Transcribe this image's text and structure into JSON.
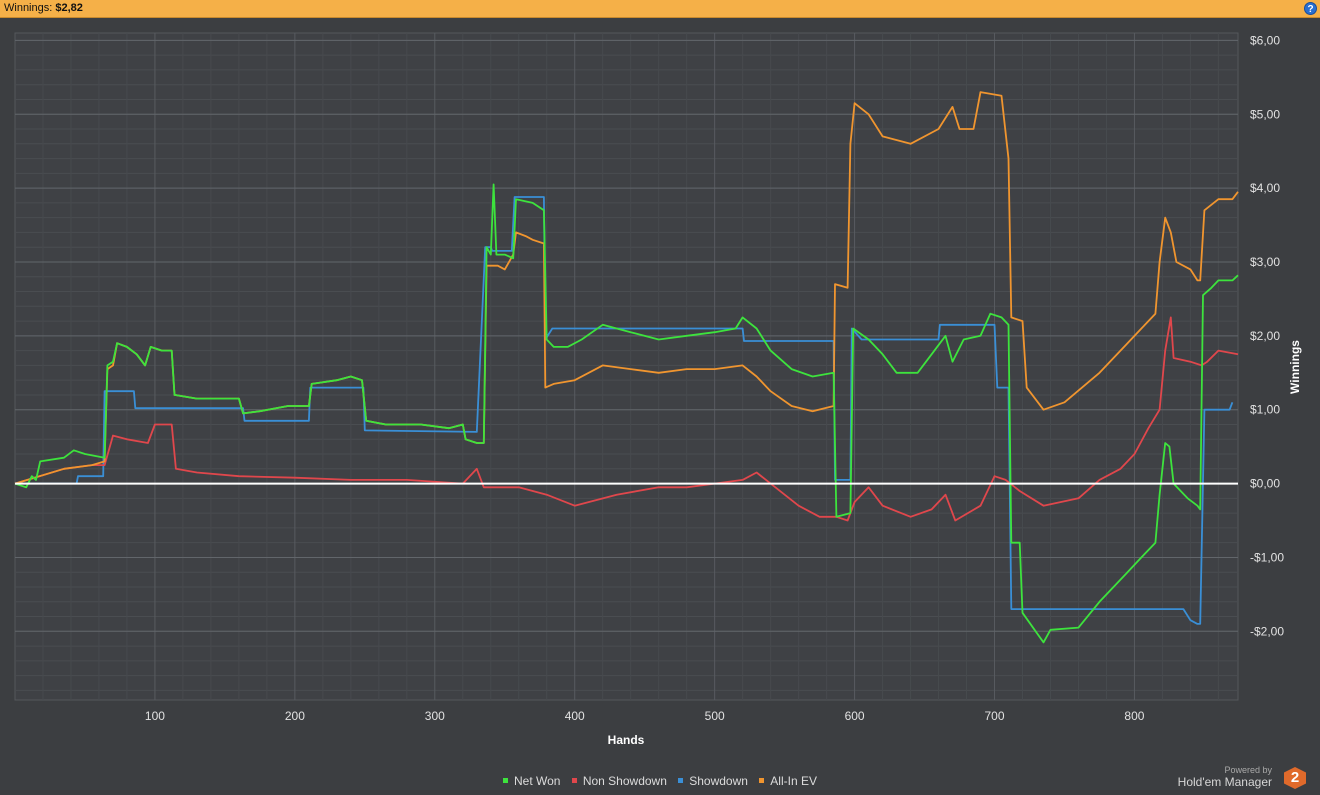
{
  "header": {
    "label": "Winnings:",
    "value": "$2,82",
    "help_icon": "?"
  },
  "brand": {
    "powered_by": "Powered by",
    "name": "Hold'em Manager",
    "logo_text": "2"
  },
  "colors": {
    "net_won": "#3de33d",
    "non_showdown": "#e0474c",
    "showdown": "#3a8fd6",
    "allin_ev": "#f0952f",
    "zero_line": "#ffffff"
  },
  "chart_data": {
    "type": "line",
    "xlabel": "Hands",
    "ylabel": "Winnings",
    "xlim": [
      0,
      874
    ],
    "ylim": [
      -2.93,
      6.1
    ],
    "x_ticks": [
      100,
      200,
      300,
      400,
      500,
      600,
      700,
      800
    ],
    "y_ticks": [
      {
        "v": 6,
        "label": "$6,00"
      },
      {
        "v": 5,
        "label": "$5,00"
      },
      {
        "v": 4,
        "label": "$4,00"
      },
      {
        "v": 3,
        "label": "$3,00"
      },
      {
        "v": 2,
        "label": "$2,00"
      },
      {
        "v": 1,
        "label": "$1,00"
      },
      {
        "v": 0,
        "label": "$0,00"
      },
      {
        "v": -1,
        "label": "-$1,00"
      },
      {
        "v": -2,
        "label": "-$2,00"
      }
    ],
    "grid": true,
    "legend_position": "bottom",
    "series": [
      {
        "name": "Net Won",
        "color": "#3de33d",
        "points": [
          [
            0,
            0
          ],
          [
            8,
            -0.05
          ],
          [
            12,
            0.1
          ],
          [
            15,
            0.05
          ],
          [
            18,
            0.3
          ],
          [
            35,
            0.35
          ],
          [
            42,
            0.45
          ],
          [
            50,
            0.4
          ],
          [
            64,
            0.35
          ],
          [
            66,
            1.6
          ],
          [
            70,
            1.65
          ],
          [
            73,
            1.9
          ],
          [
            80,
            1.85
          ],
          [
            87,
            1.75
          ],
          [
            93,
            1.6
          ],
          [
            97,
            1.85
          ],
          [
            105,
            1.8
          ],
          [
            112,
            1.8
          ],
          [
            114,
            1.2
          ],
          [
            130,
            1.15
          ],
          [
            160,
            1.15
          ],
          [
            163,
            0.95
          ],
          [
            175,
            0.98
          ],
          [
            195,
            1.05
          ],
          [
            210,
            1.05
          ],
          [
            212,
            1.35
          ],
          [
            230,
            1.4
          ],
          [
            240,
            1.45
          ],
          [
            248,
            1.4
          ],
          [
            251,
            0.85
          ],
          [
            265,
            0.8
          ],
          [
            290,
            0.8
          ],
          [
            310,
            0.75
          ],
          [
            320,
            0.8
          ],
          [
            322,
            0.6
          ],
          [
            330,
            0.55
          ],
          [
            335,
            0.55
          ],
          [
            337,
            3.2
          ],
          [
            340,
            3.1
          ],
          [
            342,
            4.05
          ],
          [
            344,
            3.1
          ],
          [
            350,
            3.1
          ],
          [
            356,
            3.05
          ],
          [
            358,
            3.85
          ],
          [
            370,
            3.8
          ],
          [
            378,
            3.7
          ],
          [
            380,
            1.95
          ],
          [
            385,
            1.85
          ],
          [
            395,
            1.85
          ],
          [
            405,
            1.95
          ],
          [
            420,
            2.15
          ],
          [
            440,
            2.05
          ],
          [
            460,
            1.95
          ],
          [
            480,
            2.0
          ],
          [
            500,
            2.05
          ],
          [
            515,
            2.1
          ],
          [
            520,
            2.25
          ],
          [
            530,
            2.1
          ],
          [
            540,
            1.8
          ],
          [
            555,
            1.55
          ],
          [
            570,
            1.45
          ],
          [
            585,
            1.5
          ],
          [
            587,
            -0.45
          ],
          [
            597,
            -0.4
          ],
          [
            599,
            2.1
          ],
          [
            610,
            1.95
          ],
          [
            620,
            1.75
          ],
          [
            630,
            1.5
          ],
          [
            645,
            1.5
          ],
          [
            655,
            1.75
          ],
          [
            665,
            2.0
          ],
          [
            670,
            1.65
          ],
          [
            678,
            1.95
          ],
          [
            690,
            2.0
          ],
          [
            697,
            2.3
          ],
          [
            705,
            2.25
          ],
          [
            710,
            2.15
          ],
          [
            712,
            -0.8
          ],
          [
            718,
            -0.8
          ],
          [
            720,
            -1.75
          ],
          [
            735,
            -2.15
          ],
          [
            740,
            -1.98
          ],
          [
            760,
            -1.95
          ],
          [
            775,
            -1.6
          ],
          [
            785,
            -1.4
          ],
          [
            795,
            -1.2
          ],
          [
            805,
            -1.0
          ],
          [
            815,
            -0.8
          ],
          [
            818,
            -0.15
          ],
          [
            822,
            0.55
          ],
          [
            825,
            0.5
          ],
          [
            828,
            0.0
          ],
          [
            838,
            -0.2
          ],
          [
            845,
            -0.3
          ],
          [
            847,
            -0.35
          ],
          [
            849,
            2.55
          ],
          [
            855,
            2.65
          ],
          [
            860,
            2.75
          ],
          [
            870,
            2.75
          ],
          [
            874,
            2.82
          ]
        ]
      },
      {
        "name": "Non Showdown",
        "color": "#e0474c",
        "points": [
          [
            0,
            0
          ],
          [
            35,
            0.2
          ],
          [
            55,
            0.25
          ],
          [
            64,
            0.25
          ],
          [
            70,
            0.65
          ],
          [
            80,
            0.6
          ],
          [
            95,
            0.55
          ],
          [
            100,
            0.8
          ],
          [
            112,
            0.8
          ],
          [
            115,
            0.2
          ],
          [
            130,
            0.15
          ],
          [
            160,
            0.1
          ],
          [
            200,
            0.08
          ],
          [
            240,
            0.05
          ],
          [
            280,
            0.05
          ],
          [
            320,
            0.0
          ],
          [
            330,
            0.2
          ],
          [
            335,
            -0.05
          ],
          [
            360,
            -0.05
          ],
          [
            380,
            -0.15
          ],
          [
            400,
            -0.3
          ],
          [
            430,
            -0.15
          ],
          [
            460,
            -0.05
          ],
          [
            480,
            -0.05
          ],
          [
            500,
            0.0
          ],
          [
            520,
            0.05
          ],
          [
            530,
            0.15
          ],
          [
            540,
            0.0
          ],
          [
            560,
            -0.3
          ],
          [
            575,
            -0.45
          ],
          [
            587,
            -0.45
          ],
          [
            595,
            -0.5
          ],
          [
            600,
            -0.25
          ],
          [
            610,
            -0.05
          ],
          [
            620,
            -0.3
          ],
          [
            640,
            -0.45
          ],
          [
            655,
            -0.35
          ],
          [
            665,
            -0.15
          ],
          [
            672,
            -0.5
          ],
          [
            690,
            -0.3
          ],
          [
            700,
            0.1
          ],
          [
            708,
            0.05
          ],
          [
            718,
            -0.1
          ],
          [
            735,
            -0.3
          ],
          [
            760,
            -0.2
          ],
          [
            775,
            0.05
          ],
          [
            790,
            0.2
          ],
          [
            800,
            0.4
          ],
          [
            810,
            0.75
          ],
          [
            818,
            1.0
          ],
          [
            822,
            1.8
          ],
          [
            826,
            2.25
          ],
          [
            828,
            1.7
          ],
          [
            840,
            1.65
          ],
          [
            848,
            1.6
          ],
          [
            852,
            1.65
          ],
          [
            860,
            1.8
          ],
          [
            874,
            1.75
          ]
        ]
      },
      {
        "name": "Showdown",
        "color": "#3a8fd6",
        "points": [
          [
            0,
            0
          ],
          [
            44,
            0
          ],
          [
            45,
            0.1
          ],
          [
            63,
            0.1
          ],
          [
            64,
            1.25
          ],
          [
            85,
            1.25
          ],
          [
            86,
            1.02
          ],
          [
            163,
            1.02
          ],
          [
            164,
            0.85
          ],
          [
            210,
            0.85
          ],
          [
            211,
            1.3
          ],
          [
            249,
            1.3
          ],
          [
            250,
            0.72
          ],
          [
            330,
            0.7
          ],
          [
            336,
            3.2
          ],
          [
            340,
            3.2
          ],
          [
            341,
            3.15
          ],
          [
            355,
            3.15
          ],
          [
            357,
            3.88
          ],
          [
            378,
            3.88
          ],
          [
            379,
            1.95
          ],
          [
            384,
            2.1
          ],
          [
            520,
            2.1
          ],
          [
            521,
            1.93
          ],
          [
            585,
            1.93
          ],
          [
            586,
            0.05
          ],
          [
            597,
            0.05
          ],
          [
            598,
            2.1
          ],
          [
            605,
            1.95
          ],
          [
            660,
            1.95
          ],
          [
            661,
            2.15
          ],
          [
            700,
            2.15
          ],
          [
            702,
            1.3
          ],
          [
            710,
            1.3
          ],
          [
            712,
            -1.7
          ],
          [
            835,
            -1.7
          ],
          [
            840,
            -1.85
          ],
          [
            845,
            -1.9
          ],
          [
            847,
            -1.9
          ],
          [
            850,
            1.0
          ],
          [
            868,
            1.0
          ],
          [
            870,
            1.1
          ]
        ]
      },
      {
        "name": "All-In EV",
        "color": "#f0952f",
        "points": [
          [
            0,
            0
          ],
          [
            35,
            0.2
          ],
          [
            55,
            0.25
          ],
          [
            64,
            0.3
          ],
          [
            66,
            1.55
          ],
          [
            70,
            1.6
          ],
          [
            73,
            1.9
          ],
          [
            80,
            1.85
          ],
          [
            87,
            1.75
          ],
          [
            93,
            1.6
          ],
          [
            97,
            1.85
          ],
          [
            105,
            1.8
          ],
          [
            112,
            1.8
          ],
          [
            114,
            1.2
          ],
          [
            130,
            1.15
          ],
          [
            160,
            1.15
          ],
          [
            163,
            0.95
          ],
          [
            175,
            0.98
          ],
          [
            195,
            1.05
          ],
          [
            210,
            1.05
          ],
          [
            212,
            1.35
          ],
          [
            230,
            1.4
          ],
          [
            240,
            1.45
          ],
          [
            248,
            1.4
          ],
          [
            251,
            0.85
          ],
          [
            265,
            0.8
          ],
          [
            290,
            0.8
          ],
          [
            310,
            0.75
          ],
          [
            320,
            0.8
          ],
          [
            322,
            0.6
          ],
          [
            330,
            0.55
          ],
          [
            335,
            0.55
          ],
          [
            337,
            2.95
          ],
          [
            345,
            2.95
          ],
          [
            350,
            2.9
          ],
          [
            356,
            3.1
          ],
          [
            358,
            3.4
          ],
          [
            365,
            3.35
          ],
          [
            370,
            3.3
          ],
          [
            378,
            3.25
          ],
          [
            379,
            1.3
          ],
          [
            385,
            1.35
          ],
          [
            400,
            1.4
          ],
          [
            420,
            1.6
          ],
          [
            440,
            1.55
          ],
          [
            460,
            1.5
          ],
          [
            480,
            1.55
          ],
          [
            500,
            1.55
          ],
          [
            520,
            1.6
          ],
          [
            530,
            1.45
          ],
          [
            540,
            1.25
          ],
          [
            555,
            1.05
          ],
          [
            570,
            0.98
          ],
          [
            585,
            1.05
          ],
          [
            586,
            2.7
          ],
          [
            595,
            2.65
          ],
          [
            597,
            4.6
          ],
          [
            600,
            5.15
          ],
          [
            610,
            5.0
          ],
          [
            620,
            4.7
          ],
          [
            640,
            4.6
          ],
          [
            660,
            4.8
          ],
          [
            670,
            5.1
          ],
          [
            675,
            4.8
          ],
          [
            685,
            4.8
          ],
          [
            690,
            5.3
          ],
          [
            705,
            5.25
          ],
          [
            710,
            4.4
          ],
          [
            712,
            2.25
          ],
          [
            720,
            2.2
          ],
          [
            723,
            1.3
          ],
          [
            735,
            1.0
          ],
          [
            750,
            1.1
          ],
          [
            775,
            1.5
          ],
          [
            785,
            1.7
          ],
          [
            795,
            1.9
          ],
          [
            805,
            2.1
          ],
          [
            815,
            2.3
          ],
          [
            818,
            3.0
          ],
          [
            822,
            3.6
          ],
          [
            826,
            3.4
          ],
          [
            830,
            3.0
          ],
          [
            840,
            2.9
          ],
          [
            845,
            2.75
          ],
          [
            847,
            2.75
          ],
          [
            850,
            3.7
          ],
          [
            860,
            3.85
          ],
          [
            870,
            3.85
          ],
          [
            874,
            3.95
          ]
        ]
      }
    ]
  }
}
